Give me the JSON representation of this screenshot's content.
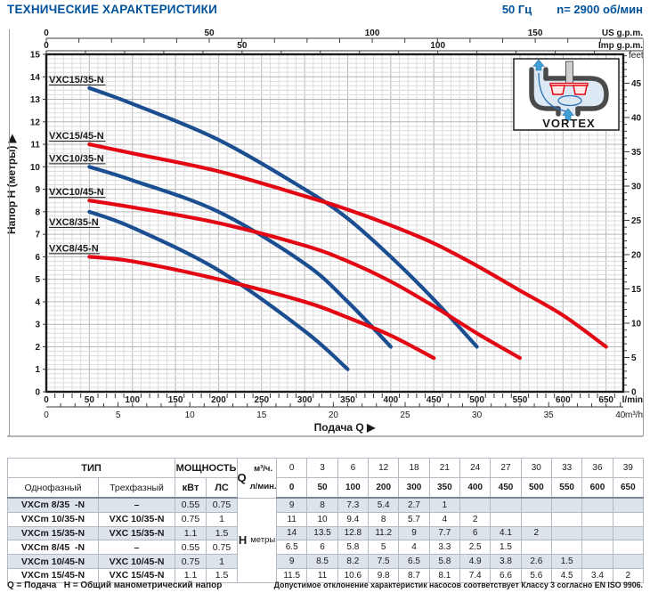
{
  "header": {
    "title": "ТЕХНИЧЕСКИЕ ХАРАКТЕРИСТИКИ",
    "frequency": "50 Гц",
    "speed": "n= 2900 об/мин"
  },
  "colors": {
    "accent": "#00529b",
    "curve_blue": "#1b4e90",
    "curve_red": "#e30613",
    "stripe": "#dce3eb",
    "grid_minor": "#dcdcdc",
    "grid_major": "#b6b6b6",
    "inset_water": "#dce8f3",
    "inset_casing": "#4a4a4a",
    "inset_arrow": "#3fa0d6"
  },
  "chart_data": {
    "type": "line",
    "title": "",
    "xlabel": "Подача Q",
    "ylabel": "Напор H (метры)",
    "x_max_lmin": 670,
    "ylim": [
      0,
      15
    ],
    "x_axes": {
      "lmin": {
        "unit": "l/min",
        "label_step": 50,
        "label_max": 650,
        "tick_step": 10
      },
      "m3h": {
        "unit": "m³/h",
        "lmin_per_unit": 16.6667,
        "label_step": 5,
        "tick_step": 1
      },
      "us_gpm": {
        "unit": "US g.p.m.",
        "lmin_per_unit": 3.785,
        "labels": [
          0,
          50,
          100,
          150
        ],
        "tick_step": 10
      },
      "imp_gpm": {
        "unit": "Imp g.p.m.",
        "lmin_per_unit": 4.546,
        "labels": [
          0,
          50,
          100
        ],
        "tick_step": 10
      }
    },
    "y_axes": {
      "meters": {
        "label_step": 1
      },
      "feet": {
        "unit": "feet",
        "m_per_unit": 0.3048,
        "label_step": 5,
        "tick_step": 1
      }
    },
    "grid": {
      "minor_lmin": 10,
      "minor_m": 0.2,
      "major_lmin": 50,
      "major_m": 1
    },
    "series": [
      {
        "name": "VXC15/35-N",
        "color": "blue",
        "label_pos": "above",
        "points_lmin_m": [
          [
            50,
            13.5
          ],
          [
            100,
            12.8
          ],
          [
            200,
            11.2
          ],
          [
            300,
            9
          ],
          [
            350,
            7.7
          ],
          [
            400,
            6
          ],
          [
            450,
            4.1
          ],
          [
            500,
            2
          ]
        ]
      },
      {
        "name": "VXC15/45-N",
        "color": "red",
        "label_pos": "above",
        "points_lmin_m": [
          [
            50,
            11
          ],
          [
            100,
            10.6
          ],
          [
            200,
            9.8
          ],
          [
            300,
            8.7
          ],
          [
            350,
            8.1
          ],
          [
            400,
            7.4
          ],
          [
            450,
            6.6
          ],
          [
            500,
            5.6
          ],
          [
            550,
            4.5
          ],
          [
            600,
            3.4
          ],
          [
            650,
            2
          ]
        ]
      },
      {
        "name": "VXC10/35-N",
        "color": "blue",
        "label_pos": "above",
        "points_lmin_m": [
          [
            50,
            10
          ],
          [
            100,
            9.4
          ],
          [
            200,
            8
          ],
          [
            300,
            5.7
          ],
          [
            350,
            4
          ],
          [
            400,
            2
          ]
        ]
      },
      {
        "name": "VXC10/45-N",
        "color": "red",
        "label_pos": "above",
        "points_lmin_m": [
          [
            50,
            8.5
          ],
          [
            100,
            8.2
          ],
          [
            200,
            7.5
          ],
          [
            300,
            6.5
          ],
          [
            350,
            5.8
          ],
          [
            400,
            4.9
          ],
          [
            450,
            3.8
          ],
          [
            500,
            2.6
          ],
          [
            550,
            1.5
          ]
        ]
      },
      {
        "name": "VXC8/35-N",
        "color": "blue",
        "label_pos": "below",
        "points_lmin_m": [
          [
            50,
            8
          ],
          [
            100,
            7.3
          ],
          [
            200,
            5.4
          ],
          [
            300,
            2.7
          ],
          [
            350,
            1
          ]
        ]
      },
      {
        "name": "VXC8/45-N",
        "color": "red",
        "label_pos": "above",
        "points_lmin_m": [
          [
            50,
            6
          ],
          [
            100,
            5.8
          ],
          [
            200,
            5
          ],
          [
            300,
            4
          ],
          [
            350,
            3.3
          ],
          [
            400,
            2.5
          ],
          [
            450,
            1.5
          ]
        ]
      }
    ],
    "inset": {
      "label": "VORTEX"
    }
  },
  "table": {
    "col_headers": {
      "type_group": "ТИП",
      "power_group": "МОЩНОСТЬ",
      "single_phase": "Однофазный",
      "three_phase": "Трехфазный",
      "kw": "кВт",
      "hp": "ЛС",
      "q_label": "Q",
      "q_unit1": "м³/ч.",
      "q_unit2": "л/мин.",
      "h_label": "H",
      "h_unit": "метры"
    },
    "q_m3h": [
      "0",
      "3",
      "6",
      "12",
      "18",
      "21",
      "24",
      "27",
      "30",
      "33",
      "36",
      "39"
    ],
    "q_lmin": [
      "0",
      "50",
      "100",
      "200",
      "300",
      "350",
      "400",
      "450",
      "500",
      "550",
      "600",
      "650"
    ],
    "rows": [
      {
        "single": "VXCm 8/35  -N",
        "three": "–",
        "kw": "0.55",
        "hp": "0.75",
        "h": [
          "9",
          "8",
          "7.3",
          "5.4",
          "2.7",
          "1",
          "",
          "",
          "",
          "",
          "",
          ""
        ]
      },
      {
        "single": "VXCm 10/35-N",
        "three": "VXC 10/35-N",
        "kw": "0.75",
        "hp": "1",
        "h": [
          "11",
          "10",
          "9.4",
          "8",
          "5.7",
          "4",
          "2",
          "",
          "",
          "",
          "",
          ""
        ]
      },
      {
        "single": "VXCm 15/35-N",
        "three": "VXC 15/35-N",
        "kw": "1.1",
        "hp": "1.5",
        "h": [
          "14",
          "13.5",
          "12.8",
          "11.2",
          "9",
          "7.7",
          "6",
          "4.1",
          "2",
          "",
          "",
          ""
        ]
      },
      {
        "single": "VXCm 8/45  -N",
        "three": "–",
        "kw": "0.55",
        "hp": "0.75",
        "h": [
          "6.5",
          "6",
          "5.8",
          "5",
          "4",
          "3.3",
          "2.5",
          "1.5",
          "",
          "",
          "",
          ""
        ]
      },
      {
        "single": "VXCm 10/45-N",
        "three": "VXC 10/45-N",
        "kw": "0.75",
        "hp": "1",
        "h": [
          "9",
          "8.5",
          "8.2",
          "7.5",
          "6.5",
          "5.8",
          "4.9",
          "3.8",
          "2.6",
          "1.5",
          "",
          ""
        ]
      },
      {
        "single": "VXCm 15/45-N",
        "three": "VXC 15/45-N",
        "kw": "1.1",
        "hp": "1.5",
        "h": [
          "11.5",
          "11",
          "10.6",
          "9.8",
          "8.7",
          "8.1",
          "7.4",
          "6.6",
          "5.6",
          "4.5",
          "3.4",
          "2"
        ]
      }
    ]
  },
  "footer": {
    "legend": "Q = Подача   H = Общий манометрический напор",
    "tolerance_note": "Допустимое отклонение характеристик насосов соответствует Классу 3 согласно EN ISO 9906."
  }
}
